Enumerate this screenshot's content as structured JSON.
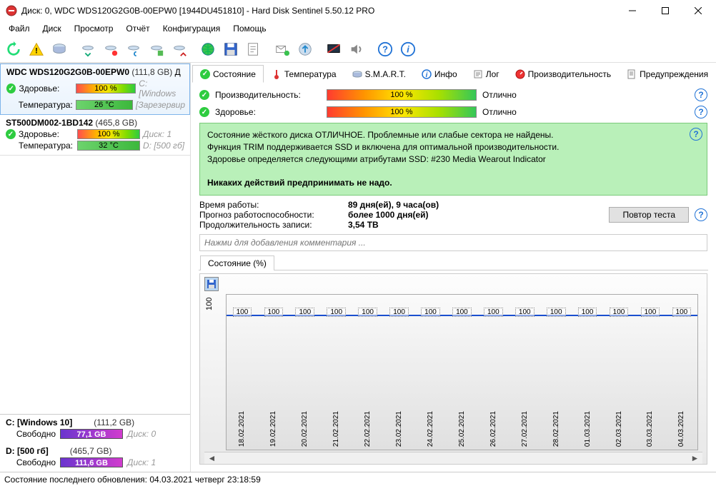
{
  "window": {
    "title": "Диск: 0, WDC WDS120G2G0B-00EPW0 [1944DU451810]  -  Hard Disk Sentinel 5.50.12 PRO"
  },
  "menu": [
    "Файл",
    "Диск",
    "Просмотр",
    "Отчёт",
    "Конфигурация",
    "Помощь"
  ],
  "disks": [
    {
      "name": "WDC WDS120G2G0B-00EPW0",
      "size": "(111,8 GB)",
      "drive_letter": "Д",
      "health_label": "Здоровье:",
      "health_value": "100 %",
      "temp_label": "Температура:",
      "temp_value": "26 °C",
      "extra1": "C: [Windows",
      "extra2": "[Зарезервир",
      "selected": true
    },
    {
      "name": "ST500DM002-1BD142",
      "size": "(465,8 GB)",
      "drive_letter": "",
      "health_label": "Здоровье:",
      "health_value": "100 %",
      "temp_label": "Температура:",
      "temp_value": "32 °C",
      "extra1": "Диск: 1",
      "extra2": "D: [500 гб]",
      "selected": false
    }
  ],
  "partitions": [
    {
      "title": "C: [Windows 10]",
      "size": "(111,2 GB)",
      "free_label": "Свободно",
      "free_value": "77,1 GB",
      "disk": "Диск: 0"
    },
    {
      "title": "D: [500 гб]",
      "size": "(465,7 GB)",
      "free_label": "Свободно",
      "free_value": "111,6 GB",
      "disk": "Диск: 1"
    }
  ],
  "tabs": [
    "Состояние",
    "Температура",
    "S.M.A.R.T.",
    "Инфо",
    "Лог",
    "Производительность",
    "Предупреждения"
  ],
  "status": {
    "perf_label": "Производительность:",
    "perf_value": "100 %",
    "perf_text": "Отлично",
    "health_label": "Здоровье:",
    "health_value": "100 %",
    "health_text": "Отлично"
  },
  "greenbox": {
    "l1": "Состояние жёсткого диска ОТЛИЧНОЕ. Проблемные или слабые сектора не найдены.",
    "l2": "Функция TRIM поддерживается SSD и включена для оптимальной производительности.",
    "l3": "Здоровье определяется следующими атрибутами SSD: #230 Media Wearout Indicator",
    "l4": "Никаких действий предпринимать не надо."
  },
  "kv": [
    {
      "k": "Время работы:",
      "v": "89 дня(ей), 9 часа(ов)"
    },
    {
      "k": "Прогноз работоспособности:",
      "v": "более 1000 дня(ей)"
    },
    {
      "k": "Продолжительность записи:",
      "v": "3,54 ТВ"
    }
  ],
  "retest_label": "Повтор теста",
  "comment_placeholder": "Нажми для добавления комментария ...",
  "chart": {
    "tab_label": "Состояние (%)",
    "y_label": "100",
    "point_label": "100",
    "dates": [
      "18.02.2021",
      "19.02.2021",
      "20.02.2021",
      "21.02.2021",
      "22.02.2021",
      "23.02.2021",
      "24.02.2021",
      "25.02.2021",
      "26.02.2021",
      "27.02.2021",
      "28.02.2021",
      "01.03.2021",
      "02.03.2021",
      "03.03.2021",
      "04.03.2021"
    ],
    "line_color": "#1a4fcf",
    "bg_gradient_top": "#fafafa",
    "bg_gradient_bot": "#e0e0e0"
  },
  "statusbar": "Состояние последнего обновления: 04.03.2021 четверг 23:18:59"
}
